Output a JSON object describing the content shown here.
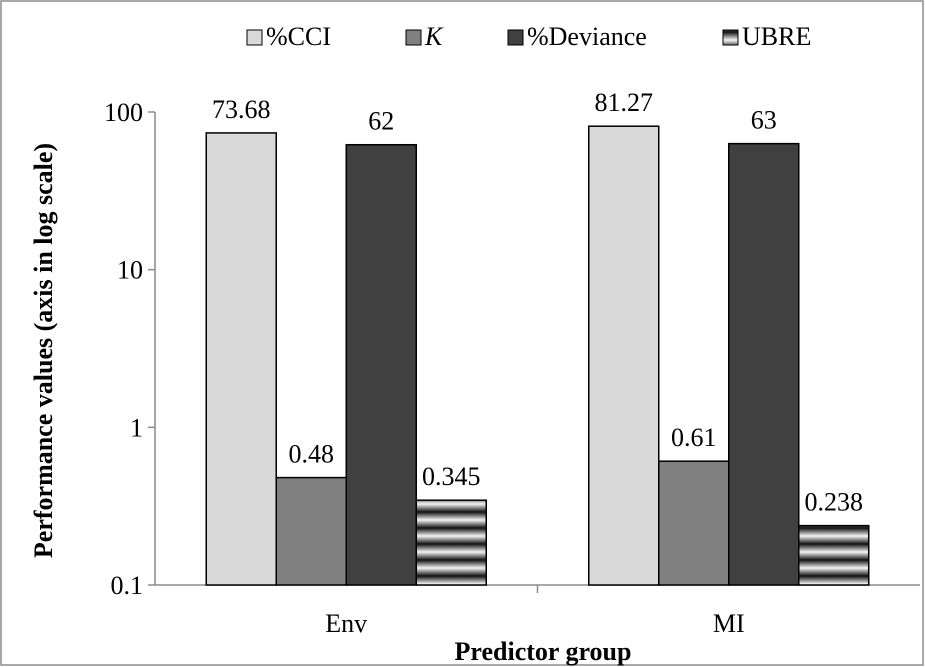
{
  "chart_data": {
    "type": "bar",
    "title": "",
    "xlabel": "Predictor group",
    "ylabel": "Performance values (axis in log scale)",
    "yscale": "log",
    "ylim": [
      0.1,
      100
    ],
    "yticks": [
      0.1,
      1,
      10,
      100
    ],
    "ytick_labels": [
      "0.1",
      "1",
      "10",
      "100"
    ],
    "grid": false,
    "legend": "top",
    "categories": [
      "Env",
      "MI"
    ],
    "series": [
      {
        "name": "%CCI",
        "values": [
          73.68,
          81.27
        ],
        "labels": [
          "73.68",
          "81.27"
        ],
        "color": "#d9d9d9",
        "pattern": "solid"
      },
      {
        "name": "K",
        "italic": true,
        "values": [
          0.48,
          0.61
        ],
        "labels": [
          "0.48",
          "0.61"
        ],
        "color": "#808080",
        "pattern": "solid"
      },
      {
        "name": "%Deviance",
        "values": [
          62,
          63
        ],
        "labels": [
          "62",
          "63"
        ],
        "color": "#404040",
        "pattern": "solid"
      },
      {
        "name": "UBRE",
        "values": [
          0.345,
          0.238
        ],
        "labels": [
          "0.345",
          "0.238"
        ],
        "color": "#000000",
        "pattern": "horizontal-bands"
      }
    ]
  }
}
